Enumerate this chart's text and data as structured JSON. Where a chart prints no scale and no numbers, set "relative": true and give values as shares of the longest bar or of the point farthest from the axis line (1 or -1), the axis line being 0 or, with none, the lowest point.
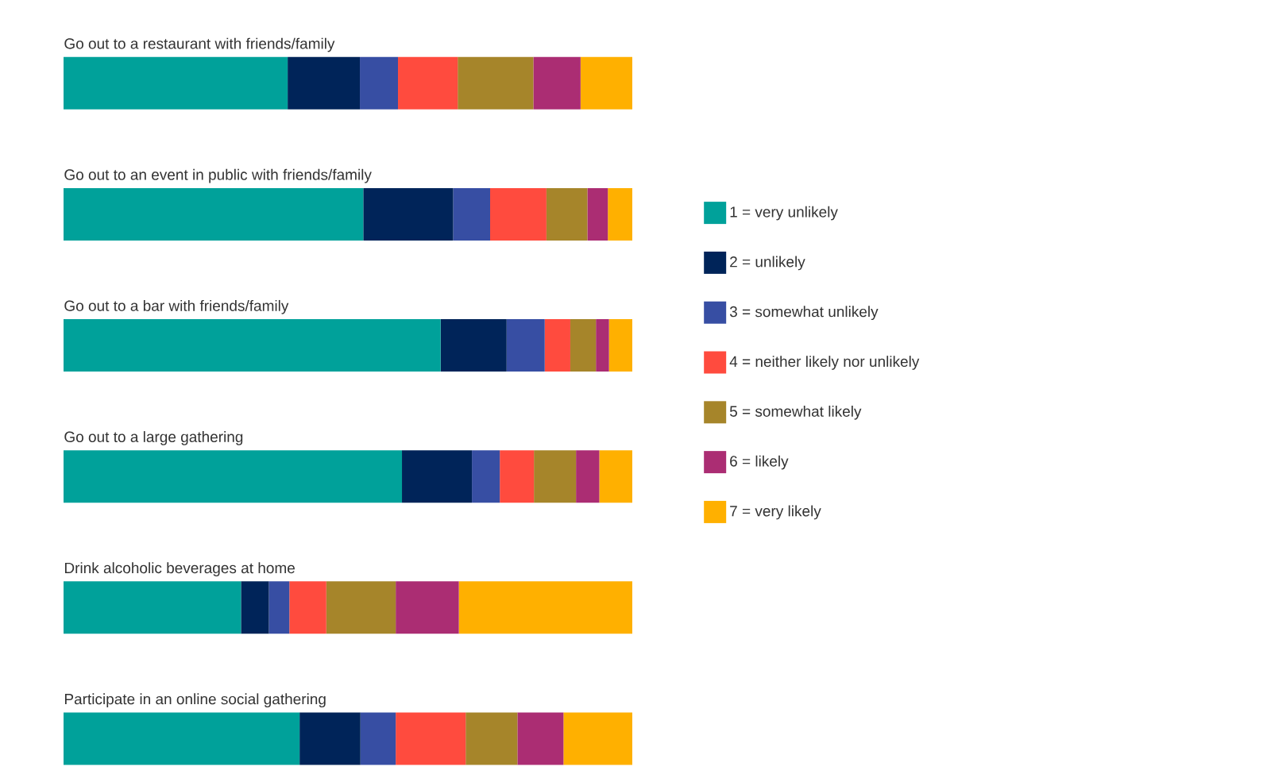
{
  "chart_data": {
    "type": "bar",
    "orientation": "horizontal",
    "stacked": true,
    "relative": true,
    "legend": "right",
    "categories": [
      "Go out to a restaurant with friends/family",
      "Go out to an event in public with friends/family",
      "Go out to a bar with friends/family",
      "Go out to a large gathering",
      "Drink alcoholic beverages at home",
      "Participate in an online social gathering"
    ],
    "series": [
      {
        "name": "1 = very unlikely",
        "color": "#00a19a",
        "values": [
          0.394,
          0.527,
          0.663,
          0.595,
          0.312,
          0.415
        ]
      },
      {
        "name": "2 = unlikely",
        "color": "#002459",
        "values": [
          0.127,
          0.158,
          0.116,
          0.123,
          0.049,
          0.107
        ]
      },
      {
        "name": "3 = somewhat unlikely",
        "color": "#374ea3",
        "values": [
          0.067,
          0.065,
          0.067,
          0.049,
          0.036,
          0.062
        ]
      },
      {
        "name": "4 = neither likely nor unlikely",
        "color": "#ff4b3e",
        "values": [
          0.105,
          0.099,
          0.045,
          0.06,
          0.065,
          0.123
        ]
      },
      {
        "name": "5 = somewhat likely",
        "color": "#a6852a",
        "values": [
          0.133,
          0.072,
          0.045,
          0.074,
          0.122,
          0.091
        ]
      },
      {
        "name": "6 = likely",
        "color": "#ab2d73",
        "values": [
          0.083,
          0.036,
          0.023,
          0.041,
          0.111,
          0.081
        ]
      },
      {
        "name": "7 = very likely",
        "color": "#ffb000",
        "values": [
          0.091,
          0.043,
          0.041,
          0.058,
          0.305,
          0.121
        ]
      }
    ]
  }
}
